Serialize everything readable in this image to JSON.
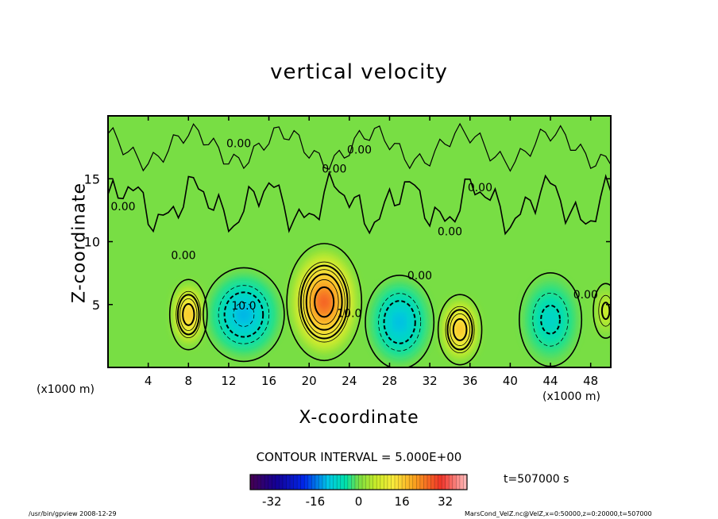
{
  "chart_data": {
    "type": "heatmap",
    "title": "vertical velocity",
    "xlabel": "X-coordinate",
    "ylabel": "Z-coordinate",
    "x_unit_left": "(x1000 m)",
    "x_unit_right": "(x1000 m)",
    "xlim": [
      0,
      50
    ],
    "ylim": [
      0,
      20
    ],
    "x_ticks": [
      "4",
      "8",
      "12",
      "16",
      "20",
      "24",
      "28",
      "32",
      "36",
      "40",
      "44",
      "48"
    ],
    "x_tick_values": [
      4,
      8,
      12,
      16,
      20,
      24,
      28,
      32,
      36,
      40,
      44,
      48
    ],
    "y_ticks": [
      "5",
      "10",
      "15"
    ],
    "y_tick_values": [
      5,
      10,
      15
    ],
    "contour_interval_text": "CONTOUR INTERVAL = 5.000E+00",
    "contour_interval": 5.0,
    "contour_labels": [
      {
        "text": "0.00",
        "x": 1.5,
        "z": 12.5
      },
      {
        "text": "0.00",
        "x": 7.5,
        "z": 8.6
      },
      {
        "text": "10.0",
        "x": 13.5,
        "z": 4.6
      },
      {
        "text": "0.00",
        "x": 13.0,
        "z": 17.5
      },
      {
        "text": "0.00",
        "x": 22.5,
        "z": 15.5
      },
      {
        "text": "0.00",
        "x": 25.0,
        "z": 17.0
      },
      {
        "text": "10.0",
        "x": 24.0,
        "z": 4.0
      },
      {
        "text": "0.00",
        "x": 31.0,
        "z": 7.0
      },
      {
        "text": "0.00",
        "x": 34.0,
        "z": 10.5
      },
      {
        "text": "0.00",
        "x": 37.0,
        "z": 14.0
      },
      {
        "text": "0.00",
        "x": 47.5,
        "z": 5.5
      }
    ],
    "cells": [
      {
        "x": 8,
        "z": 4.2,
        "sx": 1.2,
        "sz": 1.8,
        "value": 22
      },
      {
        "x": 13.5,
        "z": 4.2,
        "sx": 2.6,
        "sz": 2.4,
        "value": -15
      },
      {
        "x": 21.5,
        "z": 5.2,
        "sx": 2.4,
        "sz": 3.0,
        "value": 32
      },
      {
        "x": 29,
        "z": 3.6,
        "sx": 2.2,
        "sz": 2.4,
        "value": -14
      },
      {
        "x": 35,
        "z": 3.0,
        "sx": 1.4,
        "sz": 1.8,
        "value": 22
      },
      {
        "x": 44,
        "z": 3.8,
        "sx": 2.0,
        "sz": 2.4,
        "value": -10
      },
      {
        "x": 49.5,
        "z": 4.5,
        "sx": 0.8,
        "sz": 1.4,
        "value": 10
      }
    ],
    "colorbar": {
      "min": -40,
      "max": 40,
      "ticks": [
        "-32",
        "-16",
        "0",
        "16",
        "32"
      ],
      "tick_values": [
        -32,
        -16,
        0,
        16,
        32
      ]
    }
  },
  "time_label": "t=507000 s",
  "footer": {
    "left": "/usr/bin/gpview 2008-12-29",
    "right": "MarsCond_VelZ.nc@VelZ,x=0:50000,z=0:20000,t=507000"
  }
}
